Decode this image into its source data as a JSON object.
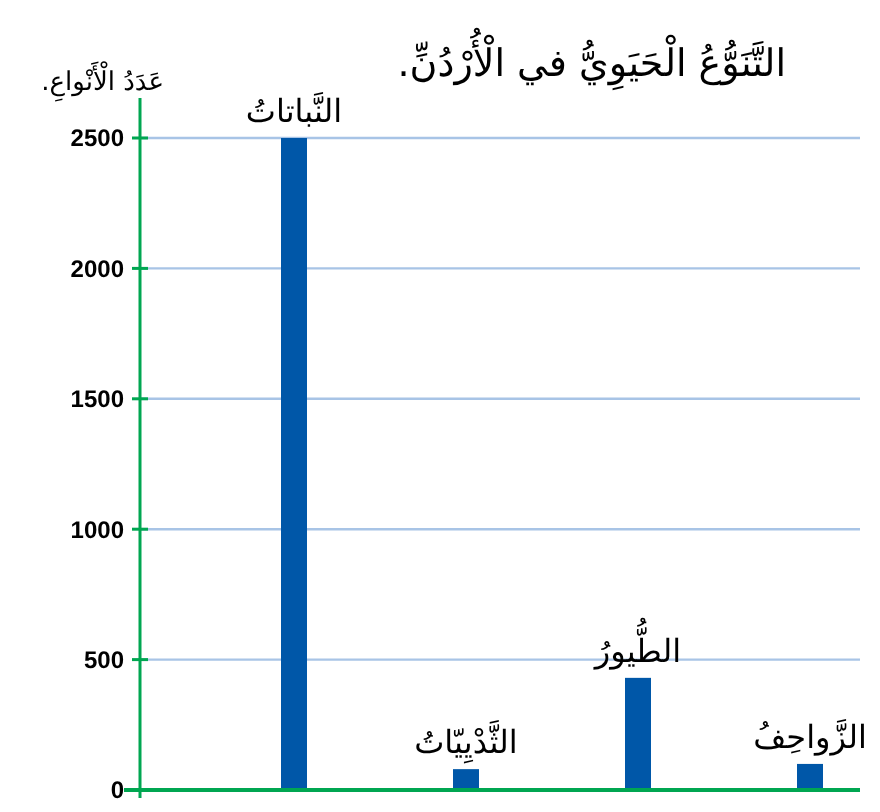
{
  "chart_data": {
    "type": "bar",
    "title": "التَّنَوُّعُ الْحَيَوِيُّ في الْأُرْدُنِّ.",
    "ylabel": "عَدَدُ الْأَنْواعِ.",
    "categories": [
      "النَّباتاتُ",
      "الثَّدْيِيّاتُ",
      "الطُّيورُ",
      "الزَّواحِفُ"
    ],
    "values": [
      2500,
      80,
      430,
      100
    ],
    "color": "#0057a8",
    "ylim": [
      0,
      2500
    ],
    "yticks": [
      0,
      500,
      1000,
      1500,
      2000,
      2500
    ],
    "grid": "y"
  }
}
